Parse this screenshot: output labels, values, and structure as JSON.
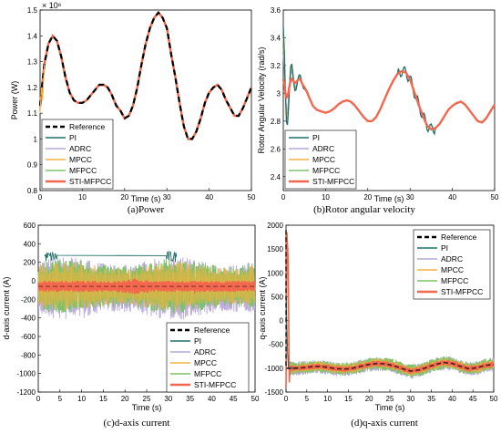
{
  "colors": {
    "Reference": "#000000",
    "PI": "#1f6e6a",
    "ADRC": "#b7a6d9",
    "MPCC": "#f2b33d",
    "MFPCC": "#7bc26b",
    "STI-MFPCC": "#f2674d"
  },
  "chart_data": [
    {
      "type": "line",
      "caption": "(a)Power",
      "xlabel": "Time (s)",
      "ylabel": "Power (W)",
      "xlim": [
        0,
        50
      ],
      "ylim": [
        0.8,
        1.5
      ],
      "exponent_label": "× 10⁶",
      "xticks": [
        "0",
        "10",
        "20",
        "30",
        "40",
        "50"
      ],
      "yticks": [
        "0.8",
        "0.9",
        "1",
        "1.1",
        "1.2",
        "1.3",
        "1.4",
        "1.5"
      ],
      "series_names": [
        "Reference",
        "PI",
        "ADRC",
        "MPCC",
        "MFPCC",
        "STI-MFPCC"
      ],
      "legend_position": "bottom-left",
      "x": [
        0,
        1,
        2,
        3,
        4,
        5,
        6,
        7,
        8,
        9,
        10,
        11,
        12,
        13,
        14,
        15,
        16,
        17,
        18,
        19,
        20,
        21,
        22,
        23,
        24,
        25,
        26,
        27,
        28,
        29,
        30,
        31,
        32,
        33,
        34,
        35,
        36,
        37,
        38,
        39,
        40,
        41,
        42,
        43,
        44,
        45,
        46,
        47,
        48,
        49,
        50
      ],
      "reference": [
        1.13,
        1.29,
        1.37,
        1.4,
        1.38,
        1.32,
        1.24,
        1.18,
        1.15,
        1.14,
        1.14,
        1.15,
        1.17,
        1.19,
        1.21,
        1.21,
        1.2,
        1.17,
        1.13,
        1.11,
        1.08,
        1.09,
        1.13,
        1.2,
        1.29,
        1.37,
        1.43,
        1.47,
        1.49,
        1.47,
        1.43,
        1.33,
        1.24,
        1.14,
        1.05,
        1.0,
        1.0,
        1.03,
        1.08,
        1.14,
        1.18,
        1.2,
        1.21,
        1.19,
        1.15,
        1.12,
        1.09,
        1.09,
        1.12,
        1.16,
        1.2
      ]
    },
    {
      "type": "line",
      "caption": "(b)Rotor angular velocity",
      "xlabel": "Time (s)",
      "ylabel": "Rotor Angular Velocity (rad/s)",
      "xlim": [
        0,
        50
      ],
      "ylim": [
        2.3,
        3.6
      ],
      "xticks": [
        "0",
        "10",
        "20",
        "30",
        "40",
        "50"
      ],
      "yticks": [
        "2.4",
        "2.6",
        "2.8",
        "3",
        "3.2",
        "3.4",
        "3.6"
      ],
      "series_names": [
        "PI",
        "ADRC",
        "MPCC",
        "MFPCC",
        "STI-MFPCC"
      ],
      "legend_position": "bottom-left",
      "x": [
        0,
        1,
        2,
        3,
        4,
        5,
        6,
        7,
        8,
        9,
        10,
        11,
        12,
        13,
        14,
        15,
        16,
        17,
        18,
        19,
        20,
        21,
        22,
        23,
        24,
        25,
        26,
        27,
        28,
        29,
        30,
        31,
        32,
        33,
        34,
        35,
        36,
        37,
        38,
        39,
        40,
        41,
        42,
        43,
        44,
        45,
        46,
        47,
        48,
        49,
        50
      ],
      "reference": [
        2.98,
        3.04,
        3.07,
        3.1,
        3.09,
        3.05,
        2.98,
        2.91,
        2.88,
        2.87,
        2.86,
        2.87,
        2.89,
        2.92,
        2.94,
        2.95,
        2.94,
        2.91,
        2.87,
        2.83,
        2.8,
        2.8,
        2.83,
        2.89,
        2.96,
        3.03,
        3.09,
        3.14,
        3.16,
        3.15,
        3.1,
        3.01,
        2.92,
        2.84,
        2.77,
        2.74,
        2.75,
        2.78,
        2.83,
        2.88,
        2.91,
        2.93,
        2.94,
        2.92,
        2.88,
        2.84,
        2.8,
        2.79,
        2.82,
        2.87,
        2.92
      ]
    },
    {
      "type": "line",
      "caption": "(c)d-axis current",
      "xlabel": "Time (s)",
      "ylabel": "d-axis current (A)",
      "xlim": [
        0,
        50
      ],
      "ylim": [
        -1200,
        600
      ],
      "xticks": [
        "0",
        "5",
        "10",
        "15",
        "20",
        "25",
        "30",
        "35",
        "40",
        "45",
        "50"
      ],
      "yticks": [
        "-1200",
        "-1000",
        "-800",
        "-600",
        "-400",
        "-200",
        "0",
        "200",
        "400",
        "600"
      ],
      "series_names": [
        "Reference",
        "PI",
        "ADRC",
        "MPCC",
        "MFPCC",
        "STI-MFPCC"
      ],
      "legend_position": "bottom-right",
      "band_center": -60,
      "band_halfwidth": 260,
      "sti_halfwidth": 60
    },
    {
      "type": "line",
      "caption": "(d)q-axis current",
      "xlabel": "Time (s)",
      "ylabel": "q-axis current (A)",
      "xlim": [
        0,
        50
      ],
      "ylim": [
        -1500,
        2000
      ],
      "xticks": [
        "0",
        "5",
        "10",
        "15",
        "20",
        "25",
        "30",
        "35",
        "40",
        "45",
        "50"
      ],
      "yticks": [
        "-1500",
        "-1000",
        "-500",
        "0",
        "500",
        "1000",
        "1500",
        "2000"
      ],
      "series_names": [
        "Reference",
        "PI",
        "ADRC",
        "MPCC",
        "MFPCC",
        "STI-MFPCC"
      ],
      "legend_position": "top-right",
      "x": [
        0,
        2,
        4,
        6,
        8,
        10,
        12,
        14,
        16,
        18,
        20,
        22,
        24,
        26,
        28,
        30,
        32,
        34,
        36,
        38,
        40,
        42,
        44,
        46,
        48,
        50
      ],
      "center": [
        -1000,
        -1000,
        -990,
        -970,
        -960,
        -980,
        -1010,
        -1020,
        -1000,
        -960,
        -920,
        -900,
        -910,
        -950,
        -1010,
        -1060,
        -1040,
        -980,
        -920,
        -880,
        -900,
        -960,
        -1010,
        -990,
        -940,
        -920
      ]
    }
  ]
}
